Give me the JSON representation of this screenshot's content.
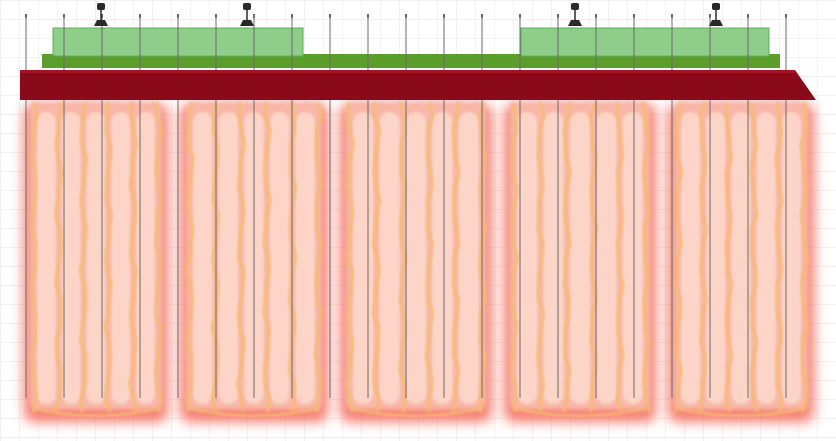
{
  "colors": {
    "background": "#ffffff",
    "grid": "#e3e3e3",
    "track_slab": "#8b0a1a",
    "track_slab_highlight": "#a51424",
    "ballast_base": "#5c9e2a",
    "platform_fill": "#8fce8a",
    "platform_stroke": "#5fae5a",
    "pile_line": "#6a6a6a",
    "soil_outer": "#f45a4a",
    "soil_mid": "#f8b8a8",
    "soil_core": "#fcd4c8",
    "soil_seam": "#f7ba70",
    "pin_head": "#2a2a2a"
  },
  "legend": {
    "items": [
      {
        "label": "",
        "icon": "pile-icon"
      },
      {
        "label": "",
        "icon": "pile-icon"
      },
      {
        "label": "",
        "icon": "pile-icon"
      },
      {
        "label": "",
        "icon": "pile-icon"
      }
    ]
  }
}
